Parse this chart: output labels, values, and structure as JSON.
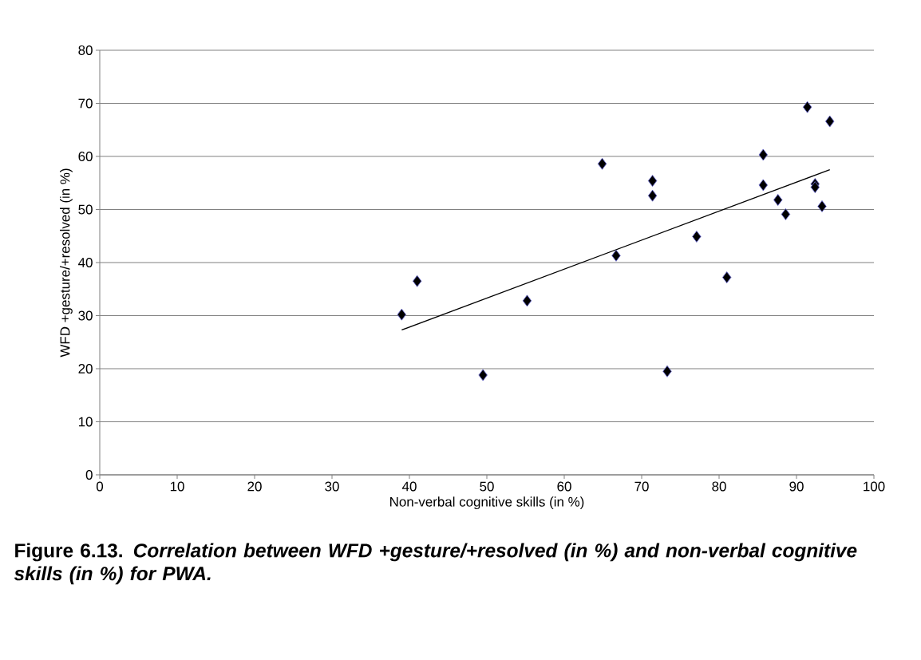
{
  "chart_data": {
    "type": "scatter",
    "title": "Figure 6.13. *Correlation between WFD +gesture/+resolved (in %) and non-verbal cognitive skills (in %) for PWA.*",
    "xlabel": "Non-verbal cognitive skills (in %)",
    "ylabel": "WFD +gesture/+resolved (in %)",
    "xlim": [
      0,
      100
    ],
    "xticks": [
      0,
      10,
      20,
      30,
      40,
      50,
      60,
      70,
      80,
      90,
      100
    ],
    "ylim": [
      0,
      80
    ],
    "yticks": [
      0,
      10,
      20,
      30,
      40,
      50,
      60,
      70,
      80
    ],
    "grid": "y",
    "series": [
      {
        "color": "#000000",
        "marker": "diamond",
        "x": [
          39,
          41,
          49.5,
          55.2,
          64.9,
          66.7,
          71.4,
          71.4,
          73.3,
          77.1,
          81,
          85.7,
          85.7,
          87.6,
          88.6,
          91.4,
          92.4,
          92.4,
          93.3,
          94.3
        ],
        "values": [
          30.2,
          36.5,
          18.8,
          32.8,
          58.6,
          41.3,
          55.4,
          52.6,
          19.5,
          44.9,
          37.2,
          60.3,
          54.6,
          51.8,
          49.1,
          69.3,
          54.8,
          54.2,
          50.6,
          66.6
        ]
      },
      {
        "type": "line",
        "color": "#000000",
        "marker": "none",
        "x": [
          39,
          94.3
        ],
        "values": [
          27.3,
          57.5
        ]
      }
    ]
  }
}
